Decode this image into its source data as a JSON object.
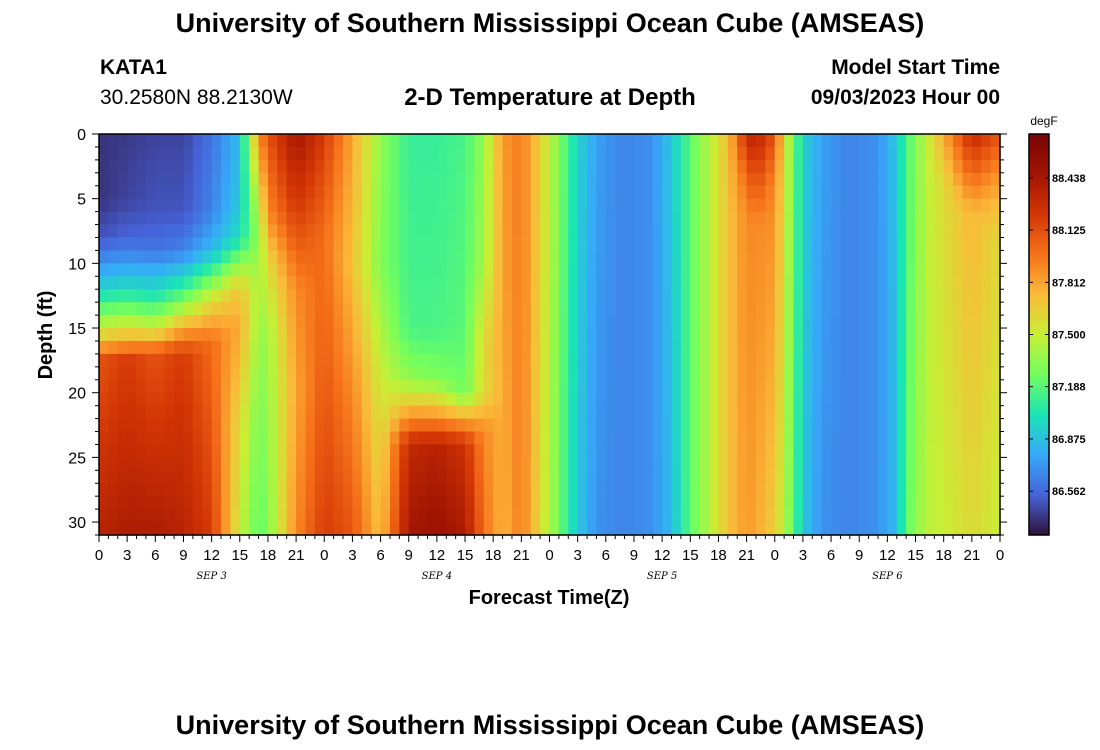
{
  "page": {
    "title": "University of Southern Mississippi Ocean Cube (AMSEAS)",
    "bottom_title": "University of Southern Mississippi Ocean Cube (AMSEAS)"
  },
  "header": {
    "station": "KATA1",
    "coords": "30.2580N  88.2130W",
    "plot_title": "2-D Temperature at Depth",
    "model_label": "Model Start Time",
    "model_time": "09/03/2023 Hour 00"
  },
  "chart_data": {
    "type": "heatmap",
    "title": "2-D Temperature at Depth",
    "xlabel": "Forecast Time(Z)",
    "ylabel": "Depth (ft)",
    "x_range_hours": [
      0,
      96
    ],
    "ylim": [
      0,
      31
    ],
    "y_ticks": [
      0,
      5,
      10,
      15,
      20,
      25,
      30
    ],
    "x_tick_labels": [
      "0",
      "3",
      "6",
      "9",
      "12",
      "15",
      "18",
      "21",
      "0",
      "3",
      "6",
      "9",
      "12",
      "15",
      "18",
      "21",
      "0",
      "3",
      "6",
      "9",
      "12",
      "15",
      "18",
      "21",
      "0",
      "3",
      "6",
      "9",
      "12",
      "15",
      "18",
      "21",
      "0"
    ],
    "day_labels": [
      {
        "text": "SEP 3",
        "hour": 12
      },
      {
        "text": "SEP 4",
        "hour": 36
      },
      {
        "text": "SEP 5",
        "hour": 60
      },
      {
        "text": "SEP 6",
        "hour": 84
      }
    ],
    "colorbar": {
      "unit": "degF",
      "vmin": 86.3,
      "vmax": 88.7,
      "tick_values": [
        86.562,
        86.875,
        87.188,
        87.5,
        87.812,
        88.125,
        88.438
      ],
      "tick_labels": [
        "86.562",
        "86.875",
        "87.188",
        "87.500",
        "87.812",
        "88.125",
        "88.438"
      ]
    },
    "columns": [
      {
        "t": 0,
        "s": [
          [
            0,
            86.4
          ],
          [
            5,
            86.4
          ],
          [
            8,
            86.5
          ],
          [
            10,
            86.7
          ],
          [
            12,
            86.95
          ],
          [
            14,
            87.3
          ],
          [
            15.5,
            87.6
          ],
          [
            17.5,
            88.1
          ],
          [
            31,
            88.35
          ]
        ]
      },
      {
        "t": 3,
        "s": [
          [
            0,
            86.42
          ],
          [
            5,
            86.45
          ],
          [
            8,
            86.55
          ],
          [
            10,
            86.75
          ],
          [
            12,
            87.0
          ],
          [
            14,
            87.35
          ],
          [
            15.5,
            87.7
          ],
          [
            17.5,
            88.2
          ],
          [
            31,
            88.4
          ]
        ]
      },
      {
        "t": 6,
        "s": [
          [
            0,
            86.45
          ],
          [
            6,
            86.5
          ],
          [
            9,
            86.6
          ],
          [
            11,
            86.85
          ],
          [
            13,
            87.1
          ],
          [
            15,
            87.5
          ],
          [
            17,
            88.1
          ],
          [
            31,
            88.4
          ]
        ]
      },
      {
        "t": 9,
        "s": [
          [
            0,
            86.45
          ],
          [
            6,
            86.5
          ],
          [
            9,
            86.65
          ],
          [
            11,
            86.95
          ],
          [
            13,
            87.3
          ],
          [
            15,
            87.8
          ],
          [
            17,
            88.2
          ],
          [
            31,
            88.35
          ]
        ]
      },
      {
        "t": 12,
        "s": [
          [
            0,
            86.6
          ],
          [
            6,
            86.65
          ],
          [
            9,
            86.85
          ],
          [
            11,
            87.2
          ],
          [
            13,
            87.6
          ],
          [
            16,
            88.0
          ],
          [
            31,
            88.2
          ]
        ]
      },
      {
        "t": 15,
        "s": [
          [
            0,
            86.85
          ],
          [
            5,
            86.9
          ],
          [
            8,
            87.0
          ],
          [
            10,
            87.35
          ],
          [
            12,
            87.7
          ],
          [
            15,
            87.8
          ],
          [
            22,
            87.6
          ],
          [
            31,
            87.5
          ]
        ]
      },
      {
        "t": 17,
        "s": [
          [
            0,
            87.9
          ],
          [
            5,
            87.5
          ],
          [
            8,
            87.35
          ],
          [
            12,
            87.4
          ],
          [
            20,
            87.3
          ],
          [
            31,
            87.2
          ]
        ]
      },
      {
        "t": 18,
        "s": [
          [
            0,
            88.1
          ],
          [
            6,
            87.9
          ],
          [
            10,
            87.6
          ],
          [
            15,
            87.4
          ],
          [
            31,
            87.3
          ]
        ]
      },
      {
        "t": 21,
        "s": [
          [
            0,
            88.45
          ],
          [
            6,
            88.2
          ],
          [
            12,
            87.9
          ],
          [
            20,
            87.8
          ],
          [
            31,
            87.9
          ]
        ]
      },
      {
        "t": 24,
        "s": [
          [
            0,
            88.2
          ],
          [
            8,
            88.0
          ],
          [
            16,
            88.05
          ],
          [
            31,
            88.2
          ]
        ]
      },
      {
        "t": 27,
        "s": [
          [
            0,
            87.8
          ],
          [
            10,
            87.7
          ],
          [
            20,
            87.9
          ],
          [
            31,
            88.1
          ]
        ]
      },
      {
        "t": 30,
        "s": [
          [
            0,
            87.35
          ],
          [
            10,
            87.3
          ],
          [
            18,
            87.5
          ],
          [
            24,
            87.6
          ],
          [
            31,
            87.7
          ]
        ]
      },
      {
        "t": 33,
        "s": [
          [
            0,
            87.1
          ],
          [
            15,
            87.15
          ],
          [
            19,
            87.35
          ],
          [
            22,
            87.9
          ],
          [
            24,
            88.3
          ],
          [
            31,
            88.45
          ]
        ]
      },
      {
        "t": 36,
        "s": [
          [
            0,
            87.1
          ],
          [
            15,
            87.15
          ],
          [
            19,
            87.3
          ],
          [
            22,
            87.9
          ],
          [
            24,
            88.35
          ],
          [
            31,
            88.5
          ]
        ]
      },
      {
        "t": 39,
        "s": [
          [
            0,
            87.15
          ],
          [
            15,
            87.2
          ],
          [
            20,
            87.25
          ],
          [
            22,
            87.8
          ],
          [
            24,
            88.25
          ],
          [
            31,
            88.4
          ]
        ]
      },
      {
        "t": 41,
        "s": [
          [
            0,
            87.35
          ],
          [
            10,
            87.4
          ],
          [
            16,
            87.6
          ],
          [
            20,
            87.6
          ],
          [
            23,
            87.9
          ],
          [
            31,
            88.0
          ]
        ]
      },
      {
        "t": 43,
        "s": [
          [
            0,
            87.85
          ],
          [
            31,
            87.75
          ]
        ]
      },
      {
        "t": 45,
        "s": [
          [
            0,
            87.95
          ],
          [
            31,
            87.95
          ]
        ]
      },
      {
        "t": 47,
        "s": [
          [
            0,
            87.65
          ],
          [
            31,
            87.6
          ]
        ]
      },
      {
        "t": 49,
        "s": [
          [
            0,
            87.3
          ],
          [
            31,
            87.25
          ]
        ]
      },
      {
        "t": 51,
        "s": [
          [
            0,
            86.95
          ],
          [
            31,
            86.9
          ]
        ]
      },
      {
        "t": 53,
        "s": [
          [
            0,
            86.75
          ],
          [
            31,
            86.7
          ]
        ]
      },
      {
        "t": 56,
        "s": [
          [
            0,
            86.65
          ],
          [
            31,
            86.65
          ]
        ]
      },
      {
        "t": 59,
        "s": [
          [
            0,
            86.7
          ],
          [
            31,
            86.7
          ]
        ]
      },
      {
        "t": 61,
        "s": [
          [
            0,
            86.9
          ],
          [
            31,
            86.85
          ]
        ]
      },
      {
        "t": 63,
        "s": [
          [
            0,
            87.2
          ],
          [
            31,
            87.2
          ]
        ]
      },
      {
        "t": 65,
        "s": [
          [
            0,
            87.45
          ],
          [
            31,
            87.45
          ]
        ]
      },
      {
        "t": 67,
        "s": [
          [
            0,
            87.7
          ],
          [
            31,
            87.7
          ]
        ]
      },
      {
        "t": 69,
        "s": [
          [
            0,
            88.3
          ],
          [
            3,
            88.05
          ],
          [
            6,
            87.9
          ],
          [
            31,
            87.85
          ]
        ]
      },
      {
        "t": 70,
        "s": [
          [
            0,
            88.35
          ],
          [
            4,
            88.1
          ],
          [
            7,
            87.9
          ],
          [
            31,
            87.8
          ]
        ]
      },
      {
        "t": 72,
        "s": [
          [
            0,
            88.1
          ],
          [
            4,
            87.9
          ],
          [
            31,
            87.65
          ]
        ]
      },
      {
        "t": 73,
        "s": [
          [
            0,
            87.6
          ],
          [
            31,
            87.45
          ]
        ]
      },
      {
        "t": 74,
        "s": [
          [
            0,
            87.25
          ],
          [
            31,
            87.2
          ]
        ]
      },
      {
        "t": 75,
        "s": [
          [
            0,
            86.95
          ],
          [
            31,
            86.9
          ]
        ]
      },
      {
        "t": 77,
        "s": [
          [
            0,
            86.75
          ],
          [
            31,
            86.7
          ]
        ]
      },
      {
        "t": 80,
        "s": [
          [
            0,
            86.65
          ],
          [
            31,
            86.65
          ]
        ]
      },
      {
        "t": 83,
        "s": [
          [
            0,
            86.7
          ],
          [
            31,
            86.7
          ]
        ]
      },
      {
        "t": 85,
        "s": [
          [
            0,
            86.9
          ],
          [
            31,
            86.85
          ]
        ]
      },
      {
        "t": 86,
        "s": [
          [
            0,
            87.15
          ],
          [
            31,
            87.2
          ]
        ]
      },
      {
        "t": 88,
        "s": [
          [
            0,
            87.45
          ],
          [
            31,
            87.45
          ]
        ]
      },
      {
        "t": 90,
        "s": [
          [
            0,
            87.8
          ],
          [
            4,
            87.6
          ],
          [
            31,
            87.5
          ]
        ]
      },
      {
        "t": 93,
        "s": [
          [
            0,
            88.3
          ],
          [
            3,
            88.05
          ],
          [
            6,
            87.75
          ],
          [
            31,
            87.6
          ]
        ]
      },
      {
        "t": 96,
        "s": [
          [
            0,
            88.1
          ],
          [
            4,
            87.8
          ],
          [
            8,
            87.6
          ],
          [
            31,
            87.5
          ]
        ]
      }
    ]
  }
}
